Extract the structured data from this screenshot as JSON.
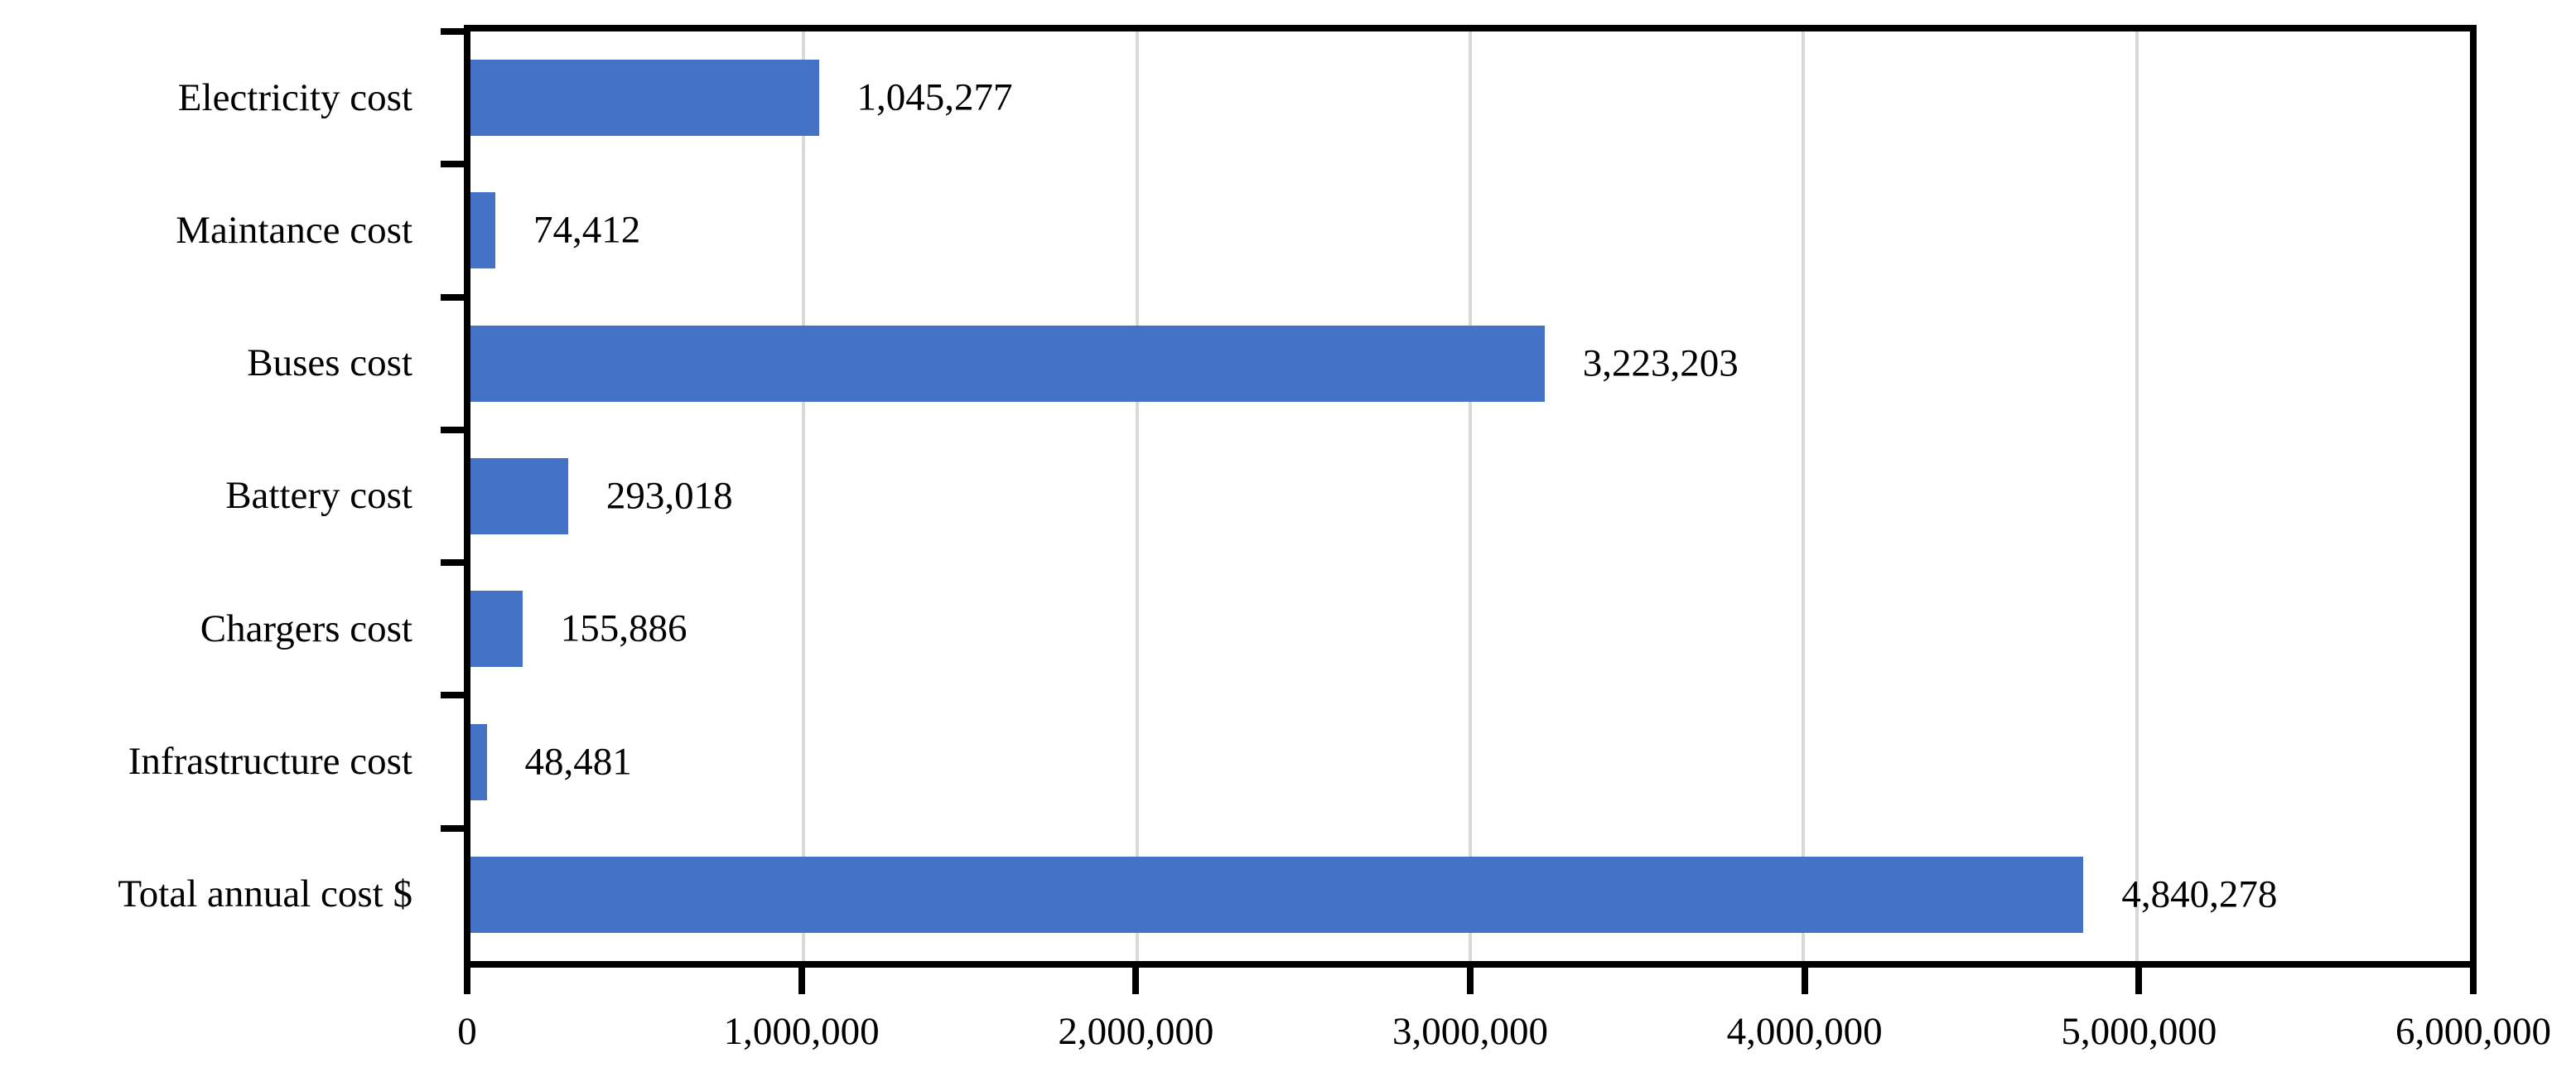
{
  "chart_data": {
    "type": "bar",
    "orientation": "horizontal",
    "title": "",
    "categories": [
      "Electricity cost",
      "Maintance cost",
      "Buses cost",
      "Battery cost",
      "Chargers cost",
      "Infrastructure cost",
      "Total annual cost $"
    ],
    "values": [
      1045277,
      74412,
      3223203,
      293018,
      155886,
      48481,
      4840278
    ],
    "value_labels": [
      "1,045,277",
      "74,412",
      "3,223,203",
      "293,018",
      "155,886",
      "48,481",
      "4,840,278"
    ],
    "xlabel": "",
    "ylabel": "",
    "xlim": [
      0,
      6000000
    ],
    "x_tick_values": [
      0,
      1000000,
      2000000,
      3000000,
      4000000,
      5000000,
      6000000
    ],
    "x_tick_labels": [
      "0",
      "1,000,000",
      "2,000,000",
      "3,000,000",
      "4,000,000",
      "5,000,000",
      "6,000,000"
    ],
    "grid": true,
    "legend": false,
    "colors": {
      "bar": "#4472C4",
      "gridline": "#D9D9D9",
      "axis": "#000000",
      "background": "#FFFFFF",
      "text": "#000000"
    }
  }
}
